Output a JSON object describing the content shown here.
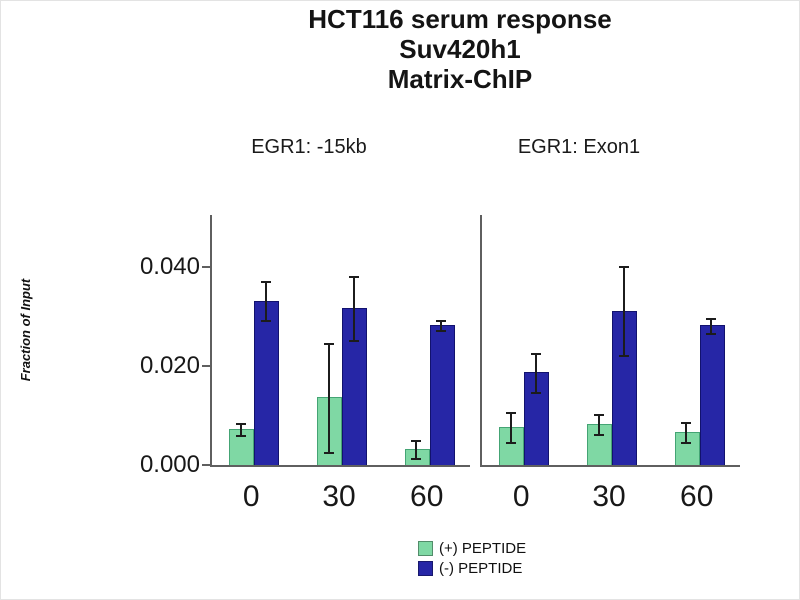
{
  "title": {
    "line1": "HCT116 serum response",
    "line2": "Suv420h1",
    "line3": "Matrix-ChIP"
  },
  "chart_data": {
    "type": "bar",
    "ylabel": "Fraction of Input",
    "ylim": [
      0,
      0.0505
    ],
    "yticks": [
      0.0,
      0.02,
      0.04
    ],
    "ytick_labels": [
      "0.000",
      "0.020",
      "0.040"
    ],
    "categories": [
      "0",
      "30",
      "60"
    ],
    "grid": false,
    "legend_position": "bottom-center",
    "legend": [
      {
        "label": "(+) PEPTIDE",
        "color": "#7fd8a4",
        "border": "#44a474"
      },
      {
        "label": "(-) PEPTIDE",
        "color": "#2626a6",
        "border": "#12126e"
      }
    ],
    "panels": [
      {
        "title": "EGR1: -15kb",
        "series": [
          {
            "name": "(+) PEPTIDE",
            "color": "#7fd8a4",
            "border": "#44a474",
            "values": [
              0.007,
              0.0135,
              0.003
            ],
            "errors": [
              0.0012,
              0.011,
              0.0018
            ]
          },
          {
            "name": "(-) PEPTIDE",
            "color": "#2626a6",
            "border": "#12126e",
            "values": [
              0.033,
              0.0315,
              0.028
            ],
            "errors": [
              0.004,
              0.0065,
              0.001
            ]
          }
        ]
      },
      {
        "title": "EGR1: Exon1",
        "series": [
          {
            "name": "(+) PEPTIDE",
            "color": "#7fd8a4",
            "border": "#44a474",
            "values": [
              0.0075,
              0.008,
              0.0065
            ],
            "errors": [
              0.003,
              0.002,
              0.002
            ]
          },
          {
            "name": "(-) PEPTIDE",
            "color": "#2626a6",
            "border": "#12126e",
            "values": [
              0.0185,
              0.031,
              0.028
            ],
            "errors": [
              0.004,
              0.009,
              0.0015
            ]
          }
        ]
      }
    ]
  }
}
